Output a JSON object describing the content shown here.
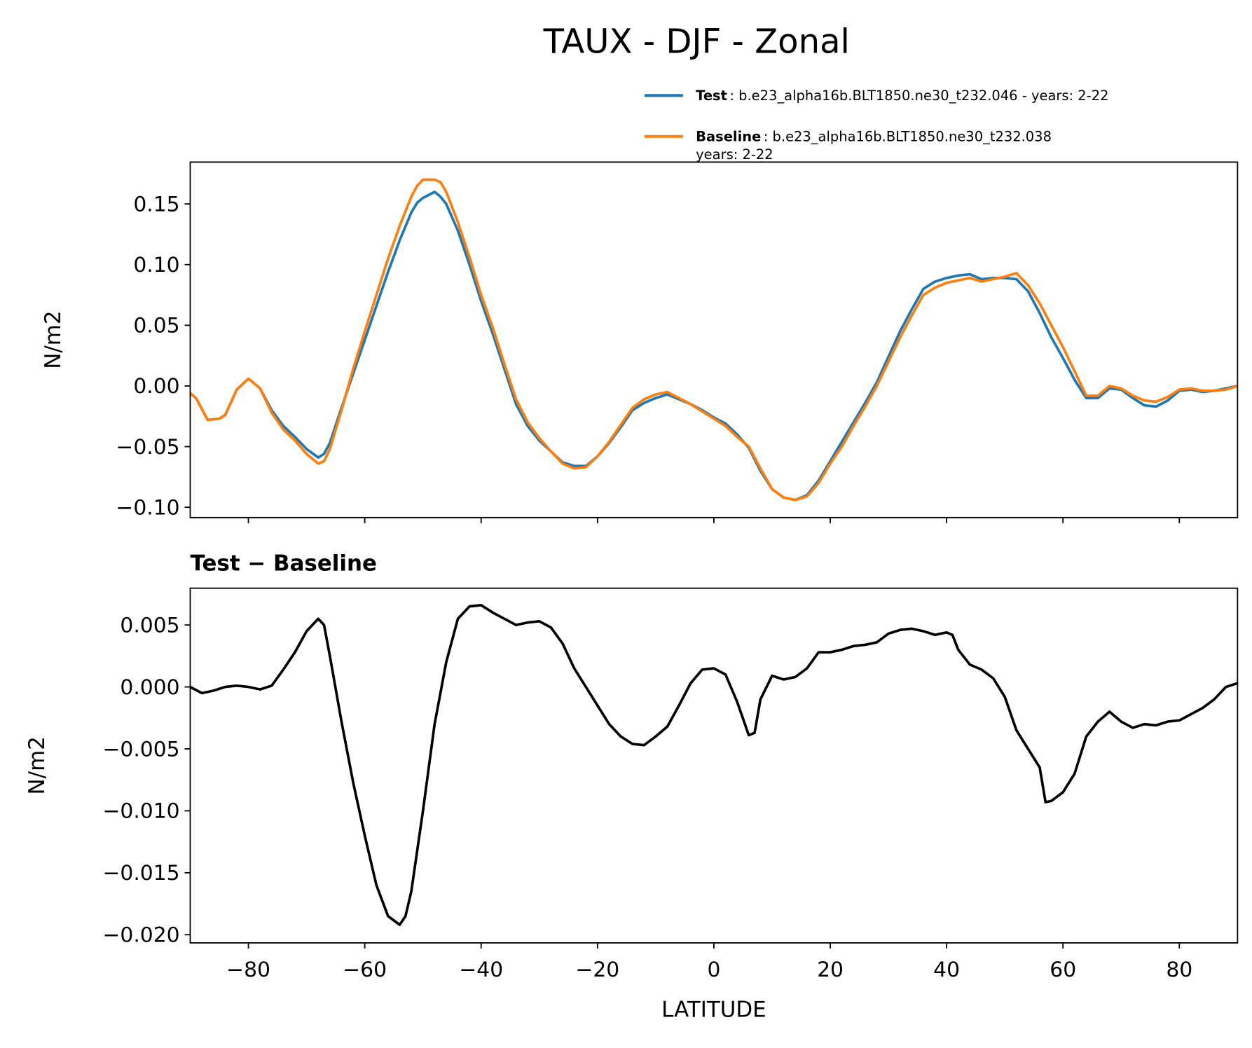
{
  "title": "TAUX - DJF - Zonal",
  "chart_data": [
    {
      "type": "line",
      "ylabel": "N/m2",
      "x": [
        -90,
        -89,
        -87,
        -85,
        -84,
        -82,
        -80,
        -78,
        -76,
        -74,
        -72,
        -70,
        -68,
        -67,
        -66,
        -64,
        -62,
        -60,
        -58,
        -56,
        -54,
        -52,
        -51,
        -50,
        -48,
        -47,
        -46,
        -44,
        -42,
        -40,
        -38,
        -36,
        -34,
        -32,
        -30,
        -28,
        -26,
        -24,
        -22,
        -20,
        -18,
        -16,
        -14,
        -12,
        -10,
        -8,
        -6,
        -4,
        -2,
        0,
        2,
        4,
        6,
        8,
        10,
        12,
        14,
        16,
        18,
        20,
        22,
        24,
        26,
        28,
        30,
        32,
        34,
        36,
        38,
        40,
        42,
        44,
        46,
        48,
        50,
        52,
        54,
        56,
        58,
        60,
        62,
        64,
        66,
        68,
        70,
        72,
        74,
        76,
        78,
        80,
        82,
        84,
        86,
        88,
        90
      ],
      "series": [
        {
          "name": "Test",
          "label_lines": [
            ": b.e23_alpha16b.BLT1850.ne30_t232.046 - years: 2-22"
          ],
          "color": "#1f77b4",
          "values": [
            -0.006,
            -0.01,
            -0.028,
            -0.027,
            -0.024,
            -0.003,
            0.006,
            -0.002,
            -0.02,
            -0.033,
            -0.042,
            -0.052,
            -0.059,
            -0.056,
            -0.047,
            -0.018,
            0.01,
            0.038,
            0.066,
            0.094,
            0.12,
            0.143,
            0.151,
            0.155,
            0.16,
            0.156,
            0.15,
            0.128,
            0.1,
            0.07,
            0.043,
            0.014,
            -0.015,
            -0.033,
            -0.045,
            -0.054,
            -0.063,
            -0.066,
            -0.066,
            -0.058,
            -0.047,
            -0.034,
            -0.02,
            -0.014,
            -0.01,
            -0.007,
            -0.011,
            -0.015,
            -0.02,
            -0.026,
            -0.031,
            -0.04,
            -0.051,
            -0.07,
            -0.085,
            -0.092,
            -0.094,
            -0.09,
            -0.078,
            -0.062,
            -0.046,
            -0.03,
            -0.014,
            0.003,
            0.024,
            0.045,
            0.063,
            0.08,
            0.086,
            0.089,
            0.091,
            0.092,
            0.088,
            0.089,
            0.089,
            0.088,
            0.078,
            0.06,
            0.04,
            0.023,
            0.005,
            -0.01,
            -0.01,
            -0.002,
            -0.003,
            -0.01,
            -0.016,
            -0.017,
            -0.012,
            -0.004,
            -0.003,
            -0.005,
            -0.004,
            -0.002,
            0.0
          ]
        },
        {
          "name": "Baseline",
          "label_lines": [
            ": b.e23_alpha16b.BLT1850.ne30_t232.038",
            "years: 2-22"
          ],
          "color": "#ff7f0e",
          "values": [
            -0.006,
            -0.01,
            -0.028,
            -0.027,
            -0.024,
            -0.003,
            0.006,
            -0.002,
            -0.022,
            -0.036,
            -0.045,
            -0.056,
            -0.064,
            -0.062,
            -0.052,
            -0.02,
            0.014,
            0.045,
            0.075,
            0.105,
            0.132,
            0.156,
            0.165,
            0.17,
            0.17,
            0.168,
            0.16,
            0.135,
            0.106,
            0.075,
            0.048,
            0.018,
            -0.011,
            -0.03,
            -0.043,
            -0.054,
            -0.064,
            -0.068,
            -0.067,
            -0.058,
            -0.046,
            -0.032,
            -0.018,
            -0.011,
            -0.007,
            -0.005,
            -0.01,
            -0.015,
            -0.021,
            -0.027,
            -0.033,
            -0.042,
            -0.05,
            -0.068,
            -0.085,
            -0.092,
            -0.094,
            -0.091,
            -0.08,
            -0.064,
            -0.05,
            -0.033,
            -0.017,
            0.0,
            0.02,
            0.04,
            0.058,
            0.075,
            0.081,
            0.085,
            0.087,
            0.089,
            0.086,
            0.088,
            0.09,
            0.093,
            0.083,
            0.068,
            0.05,
            0.032,
            0.012,
            -0.008,
            -0.008,
            0.0,
            -0.002,
            -0.008,
            -0.012,
            -0.013,
            -0.009,
            -0.003,
            -0.002,
            -0.004,
            -0.004,
            -0.003,
            0.0
          ]
        }
      ],
      "xlim": [
        -90,
        90
      ],
      "xticks": [
        -80,
        -60,
        -40,
        -20,
        0,
        20,
        40,
        60,
        80
      ],
      "show_xtick_labels": false,
      "ylim": [
        -0.1085,
        0.1845
      ],
      "yticks": [
        {
          "value": -0.1,
          "label": "−0.10"
        },
        {
          "value": -0.05,
          "label": "−0.05"
        },
        {
          "value": 0,
          "label": "0.00"
        },
        0.05,
        {
          "value": 0.1,
          "label": "0.10"
        },
        0.15
      ]
    },
    {
      "type": "line",
      "title": "Test − Baseline",
      "ylabel": "N/m2",
      "xlabel": "LATITUDE",
      "x": [
        -90,
        -88,
        -86,
        -84,
        -82,
        -80,
        -78,
        -76,
        -74,
        -72,
        -70,
        -68,
        -67,
        -66,
        -64,
        -62,
        -60,
        -58,
        -56,
        -54,
        -53,
        -52,
        -50,
        -48,
        -46,
        -44,
        -42,
        -40,
        -38,
        -36,
        -34,
        -32,
        -30,
        -28,
        -26,
        -24,
        -22,
        -20,
        -18,
        -16,
        -14,
        -12,
        -10,
        -8,
        -6,
        -4,
        -2,
        0,
        2,
        4,
        6,
        7,
        8,
        10,
        12,
        14,
        16,
        18,
        20,
        22,
        24,
        26,
        28,
        30,
        32,
        34,
        36,
        38,
        40,
        41,
        42,
        44,
        46,
        48,
        50,
        52,
        54,
        56,
        57,
        58,
        60,
        62,
        64,
        66,
        68,
        70,
        72,
        74,
        76,
        78,
        80,
        82,
        84,
        86,
        88,
        90
      ],
      "series": [
        {
          "name": "Test − Baseline",
          "color": "#000000",
          "values": [
            0.0,
            -0.0005,
            -0.0003,
            0.0,
            0.0001,
            0.0,
            -0.0002,
            0.0001,
            0.0014,
            0.0028,
            0.0045,
            0.0055,
            0.005,
            0.0025,
            -0.0028,
            -0.0077,
            -0.012,
            -0.016,
            -0.0185,
            -0.0192,
            -0.0185,
            -0.0165,
            -0.01,
            -0.003,
            0.002,
            0.0055,
            0.0065,
            0.0066,
            0.006,
            0.0055,
            0.005,
            0.0052,
            0.0053,
            0.0048,
            0.0035,
            0.0015,
            0.0,
            -0.0015,
            -0.003,
            -0.004,
            -0.0046,
            -0.0047,
            -0.004,
            -0.0032,
            -0.0015,
            0.0003,
            0.0014,
            0.0015,
            0.001,
            -0.0012,
            -0.0039,
            -0.0037,
            -0.001,
            0.0009,
            0.0006,
            0.0008,
            0.0015,
            0.0028,
            0.0028,
            0.003,
            0.0033,
            0.0034,
            0.0036,
            0.0043,
            0.0046,
            0.0047,
            0.0045,
            0.0042,
            0.0044,
            0.0042,
            0.003,
            0.0018,
            0.0014,
            0.0007,
            -0.0008,
            -0.0035,
            -0.005,
            -0.0065,
            -0.0093,
            -0.0092,
            -0.0085,
            -0.007,
            -0.004,
            -0.0028,
            -0.002,
            -0.0028,
            -0.0033,
            -0.003,
            -0.0031,
            -0.0028,
            -0.0027,
            -0.0022,
            -0.0017,
            -0.001,
            0.0,
            0.0003
          ]
        }
      ],
      "xlim": [
        -90,
        90
      ],
      "xticks": [
        {
          "value": -80,
          "label": "−80"
        },
        {
          "value": -60,
          "label": "−60"
        },
        {
          "value": -40,
          "label": "−40"
        },
        {
          "value": -20,
          "label": "−20"
        },
        0,
        20,
        40,
        60,
        80
      ],
      "show_xtick_labels": true,
      "ylim": [
        -0.02066,
        0.00797
      ],
      "yticks": [
        {
          "value": -0.02,
          "label": "−0.020"
        },
        {
          "value": -0.015,
          "label": "−0.015"
        },
        {
          "value": -0.01,
          "label": "−0.010"
        },
        {
          "value": -0.005,
          "label": "−0.005"
        },
        {
          "value": 0,
          "label": "0.000"
        },
        0.005
      ]
    }
  ]
}
